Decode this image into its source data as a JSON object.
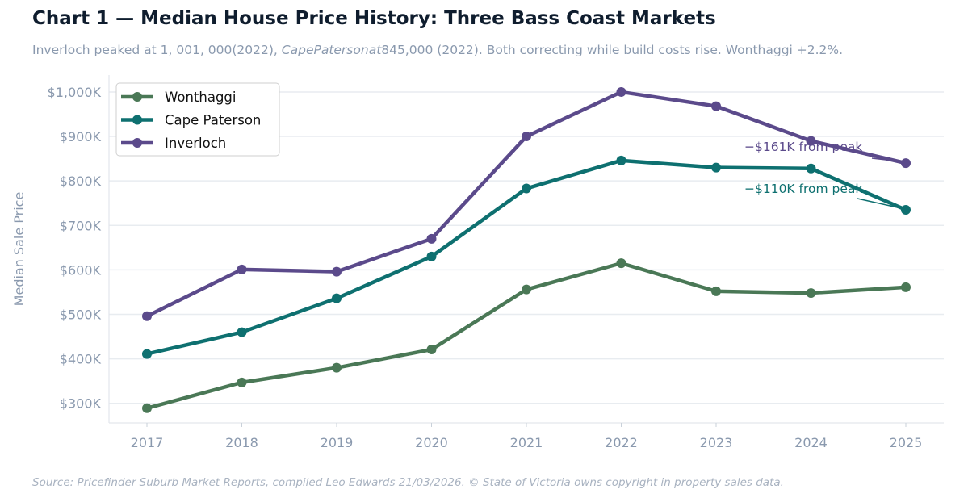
{
  "chart_data": {
    "type": "line",
    "title": "Chart 1 — Median House Price History: Three Bass Coast Markets",
    "subtitle_parts": [
      "Inverloch peaked at 1, 001, 000(2022), ",
      "CapePatersonat",
      "845,000 (2022). Both correcting while build costs rise. Wonthaggi +2.2%."
    ],
    "xlabel": "",
    "ylabel": "Median Sale Price",
    "x": [
      2017,
      2018,
      2019,
      2020,
      2021,
      2022,
      2023,
      2024,
      2025
    ],
    "xlim": [
      2016.6,
      2025.4
    ],
    "ylim": [
      256,
      1038
    ],
    "y_ticks": [
      300,
      400,
      500,
      600,
      700,
      800,
      900,
      1000
    ],
    "y_tick_labels": [
      "$300K",
      "$400K",
      "$500K",
      "$600K",
      "$700K",
      "$800K",
      "$900K",
      "$1,000K"
    ],
    "grid": "horizontal",
    "legend_position": "top-left",
    "series": [
      {
        "name": "Wonthaggi",
        "color": "#4a7856",
        "values": [
          289,
          347,
          380,
          421,
          556,
          615,
          552,
          548,
          561
        ]
      },
      {
        "name": "Cape Paterson",
        "color": "#0e7070",
        "values": [
          411,
          460,
          536,
          630,
          783,
          846,
          830,
          828,
          735
        ]
      },
      {
        "name": "Inverloch",
        "color": "#5b4a8b",
        "values": [
          496,
          601,
          596,
          670,
          900,
          1000,
          968,
          890,
          840
        ]
      }
    ],
    "annotations": [
      {
        "text": "−$161K from peak",
        "series": "Inverloch",
        "target_x": 2025,
        "color": "#5b4a8b"
      },
      {
        "text": "−$110K from peak",
        "series": "Cape Paterson",
        "target_x": 2025,
        "color": "#0e7070"
      }
    ],
    "source": "Source: Pricefinder Suburb Market Reports, compiled Leo Edwards 21/03/2026. © State of Victoria owns copyright in property sales data."
  }
}
